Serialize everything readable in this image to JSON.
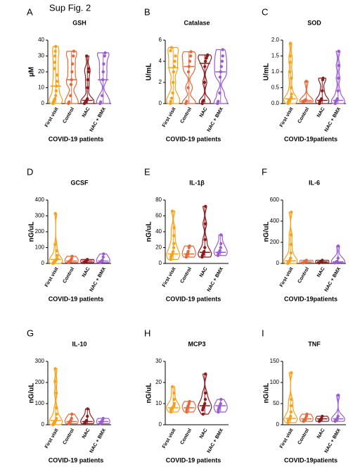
{
  "figure_label": "Sup Fig. 2",
  "chart_data": [
    {
      "type": "violin",
      "panel": "A",
      "title": "GSH",
      "ylabel": "µM",
      "xlabel": "COVID-19 patients",
      "ylim": [
        0,
        40
      ],
      "yticks": [
        0,
        10,
        20,
        30,
        40
      ],
      "categories": [
        "First visit",
        "Control",
        "NAC",
        "NAC + BMX"
      ],
      "series": [
        {
          "name": "First visit",
          "color": "#f7a11a",
          "values": [
            0,
            1,
            2,
            3,
            5,
            8,
            11,
            14,
            18,
            22,
            26,
            30,
            33,
            36
          ],
          "median": 11
        },
        {
          "name": "Control",
          "color": "#e2693a",
          "values": [
            0,
            1,
            5,
            12,
            15,
            20,
            25,
            30,
            33
          ],
          "median": 15
        },
        {
          "name": "NAC",
          "color": "#8b1c1c",
          "values": [
            0,
            0.5,
            1,
            2,
            3,
            10,
            15,
            20,
            22,
            30
          ],
          "median": 2
        },
        {
          "name": "NAC + BMX",
          "color": "#9b5bd1",
          "values": [
            0,
            1,
            5,
            15,
            20,
            25,
            30,
            32
          ],
          "median": 15
        }
      ]
    },
    {
      "type": "violin",
      "panel": "B",
      "title": "Catalase",
      "ylabel": "U/mL",
      "xlabel": "COVID-19 patients",
      "ylim": [
        0,
        6
      ],
      "yticks": [
        0,
        2,
        4,
        6
      ],
      "categories": [
        "First visit",
        "Control",
        "NAC",
        "NAC + BMX"
      ],
      "series": [
        {
          "name": "First visit",
          "color": "#f7a11a",
          "values": [
            0,
            0.2,
            0.5,
            1,
            2,
            3,
            3.5,
            4,
            4.5,
            5,
            5.3
          ],
          "median": 3.4
        },
        {
          "name": "Control",
          "color": "#e2693a",
          "values": [
            0,
            0.2,
            1.5,
            3,
            3.5,
            4,
            4.5,
            4.9
          ],
          "median": 3.5
        },
        {
          "name": "NAC",
          "color": "#8b1c1c",
          "values": [
            0,
            0.2,
            0.3,
            2,
            3.5,
            4,
            4.3,
            4.5,
            4.6
          ],
          "median": 3.8
        },
        {
          "name": "NAC + BMX",
          "color": "#9b5bd1",
          "values": [
            0,
            0.2,
            1,
            2.5,
            3,
            3.5,
            4,
            4.5,
            5.1
          ],
          "median": 3
        }
      ]
    },
    {
      "type": "violin",
      "panel": "C",
      "title": "SOD",
      "ylabel": "U/mL",
      "xlabel": "COVID-19patients",
      "ylim": [
        0,
        2
      ],
      "yticks": [
        {
          "value": 0,
          "label": "0.0"
        },
        0.5,
        {
          "value": 1,
          "label": "1.0"
        },
        1.5,
        {
          "value": 2,
          "label": "2.0"
        }
      ],
      "categories": [
        "First visit",
        "Control",
        "NAC",
        "NAC + BMX"
      ],
      "series": [
        {
          "name": "First visit",
          "color": "#f7a11a",
          "values": [
            0,
            0.05,
            0.1,
            0.1,
            0.15,
            0.2,
            0.3,
            0.5,
            0.8,
            1,
            1.3,
            1.5,
            1.9
          ],
          "median": 0.15
        },
        {
          "name": "Control",
          "color": "#e2693a",
          "values": [
            0.05,
            0.08,
            0.1,
            0.12,
            0.7
          ],
          "median": 0.1
        },
        {
          "name": "NAC",
          "color": "#8b1c1c",
          "values": [
            0,
            0.05,
            0.1,
            0.15,
            0.4,
            0.75,
            0.8
          ],
          "median": 0.1
        },
        {
          "name": "NAC + BMX",
          "color": "#9b5bd1",
          "values": [
            0,
            0.05,
            0.1,
            0.15,
            0.4,
            0.8,
            1.2,
            1.65
          ],
          "median": 0.1
        }
      ]
    },
    {
      "type": "violin",
      "panel": "D",
      "title": "GCSF",
      "ylabel": "nG/uL",
      "xlabel": "COVID-19 patients",
      "ylim": [
        0,
        400
      ],
      "yticks": [
        0,
        100,
        200,
        300,
        400
      ],
      "categories": [
        "First visit",
        "Control",
        "NAC",
        "NAC + BMX"
      ],
      "series": [
        {
          "name": "First visit",
          "color": "#f7a11a",
          "values": [
            0,
            5,
            10,
            15,
            20,
            25,
            30,
            50,
            80,
            120,
            315
          ],
          "median": 25
        },
        {
          "name": "Control",
          "color": "#e2693a",
          "values": [
            5,
            10,
            15,
            20,
            30,
            45
          ],
          "median": 15
        },
        {
          "name": "NAC",
          "color": "#8b1c1c",
          "values": [
            5,
            10,
            15,
            20,
            25
          ],
          "median": 15
        },
        {
          "name": "NAC + BMX",
          "color": "#9b5bd1",
          "values": [
            5,
            10,
            15,
            20,
            40,
            60
          ],
          "median": 15
        }
      ]
    },
    {
      "type": "violin",
      "panel": "E",
      "title": "IL-1β",
      "ylabel": "nG/uL",
      "xlabel": "COVID-19 patients",
      "ylim": [
        0,
        80
      ],
      "yticks": [
        0,
        20,
        40,
        60,
        80
      ],
      "categories": [
        "First visit",
        "Control",
        "NAC",
        "NAC + BMX"
      ],
      "series": [
        {
          "name": "First visit",
          "color": "#f7a11a",
          "values": [
            5,
            8,
            10,
            12,
            15,
            20,
            25,
            35,
            45,
            66
          ],
          "median": 12
        },
        {
          "name": "Control",
          "color": "#e2693a",
          "values": [
            8,
            10,
            12,
            15,
            20,
            22
          ],
          "median": 12
        },
        {
          "name": "NAC",
          "color": "#8b1c1c",
          "values": [
            8,
            10,
            12,
            15,
            20,
            30,
            50,
            72
          ],
          "median": 14
        },
        {
          "name": "NAC + BMX",
          "color": "#9b5bd1",
          "values": [
            10,
            12,
            14,
            16,
            20,
            25,
            36
          ],
          "median": 14
        }
      ]
    },
    {
      "type": "violin",
      "panel": "F",
      "title": "IL-6",
      "ylabel": "nG/uL",
      "xlabel": "COVID-19patients",
      "ylim": [
        0,
        600
      ],
      "yticks": [
        0,
        200,
        400,
        600
      ],
      "categories": [
        "First visit",
        "Control",
        "NAC",
        "NAC + BMX"
      ],
      "series": [
        {
          "name": "First visit",
          "color": "#f7a11a",
          "values": [
            0,
            10,
            20,
            30,
            50,
            100,
            180,
            270,
            485
          ],
          "median": 25
        },
        {
          "name": "Control",
          "color": "#e2693a",
          "values": [
            5,
            10,
            15,
            20,
            30
          ],
          "median": 15
        },
        {
          "name": "NAC",
          "color": "#8b1c1c",
          "values": [
            5,
            10,
            15,
            20,
            30
          ],
          "median": 15
        },
        {
          "name": "NAC + BMX",
          "color": "#9b5bd1",
          "values": [
            5,
            10,
            15,
            20,
            50,
            165
          ],
          "median": 15
        }
      ]
    },
    {
      "type": "violin",
      "panel": "G",
      "title": "IL-10",
      "ylabel": "nG/uL",
      "xlabel": "COVID-19 patients",
      "ylim": [
        0,
        300
      ],
      "yticks": [
        0,
        100,
        200,
        300
      ],
      "categories": [
        "First visit",
        "Control",
        "NAC",
        "NAC + BMX"
      ],
      "series": [
        {
          "name": "First visit",
          "color": "#f7a11a",
          "values": [
            0,
            5,
            10,
            15,
            20,
            30,
            50,
            80,
            150,
            205,
            265
          ],
          "median": 20
        },
        {
          "name": "Control",
          "color": "#e2693a",
          "values": [
            5,
            10,
            15,
            20,
            30,
            50
          ],
          "median": 15
        },
        {
          "name": "NAC",
          "color": "#8b1c1c",
          "values": [
            5,
            10,
            15,
            20,
            40,
            75
          ],
          "median": 15
        },
        {
          "name": "NAC + BMX",
          "color": "#9b5bd1",
          "values": [
            5,
            10,
            15,
            20,
            30
          ],
          "median": 15
        }
      ]
    },
    {
      "type": "violin",
      "panel": "H",
      "title": "MCP3",
      "ylabel": "nG/uL",
      "xlabel": "COVID-19 patients",
      "ylim": [
        0,
        30
      ],
      "yticks": [
        0,
        10,
        20,
        30
      ],
      "categories": [
        "First visit",
        "Control",
        "NAC",
        "NAC + BMX"
      ],
      "series": [
        {
          "name": "First visit",
          "color": "#f7a11a",
          "values": [
            6,
            7,
            7.5,
            8,
            8.5,
            9,
            10,
            12,
            15,
            18
          ],
          "median": 8
        },
        {
          "name": "Control",
          "color": "#e2693a",
          "values": [
            6,
            7,
            8,
            9,
            10,
            11
          ],
          "median": 8
        },
        {
          "name": "NAC",
          "color": "#8b1c1c",
          "values": [
            5,
            7,
            8,
            9,
            10,
            12,
            15,
            24
          ],
          "median": 9
        },
        {
          "name": "NAC + BMX",
          "color": "#9b5bd1",
          "values": [
            6,
            7,
            8,
            9,
            10,
            12
          ],
          "median": 9
        }
      ]
    },
    {
      "type": "violin",
      "panel": "I",
      "title": "TNF",
      "ylabel": "nG/uL",
      "xlabel": "COVID-19patients",
      "ylim": [
        0,
        150
      ],
      "yticks": [
        0,
        50,
        100,
        150
      ],
      "categories": [
        "First visit",
        "Control",
        "NAC",
        "NAC + BMX"
      ],
      "series": [
        {
          "name": "First visit",
          "color": "#f7a11a",
          "values": [
            5,
            10,
            12,
            15,
            20,
            30,
            45,
            60,
            123
          ],
          "median": 15
        },
        {
          "name": "Control",
          "color": "#e2693a",
          "values": [
            8,
            10,
            12,
            15,
            20,
            25
          ],
          "median": 14
        },
        {
          "name": "NAC",
          "color": "#8b1c1c",
          "values": [
            8,
            10,
            12,
            15,
            20
          ],
          "median": 14
        },
        {
          "name": "NAC + BMX",
          "color": "#9b5bd1",
          "values": [
            8,
            10,
            12,
            15,
            20,
            70
          ],
          "median": 14
        }
      ]
    }
  ]
}
